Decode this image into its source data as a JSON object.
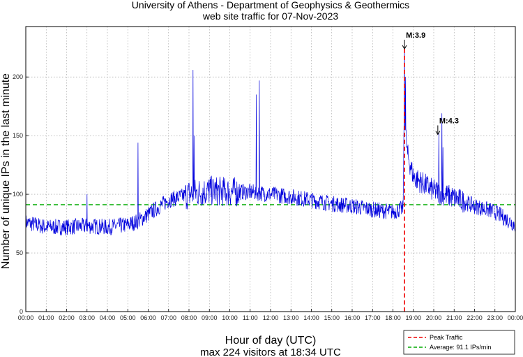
{
  "chart_data": {
    "type": "line",
    "title_line1": "University of Athens - Department of Geophysics & Geothermics",
    "title_line2": "web site traffic for 07-Nov-2023",
    "xlabel": "Hour of day (UTC)",
    "ylabel": "Number of unique IPs in the last minute",
    "summary": "max 224 visitors at 18:34 UTC",
    "xlim": [
      0,
      24
    ],
    "ylim": [
      0,
      243
    ],
    "x_ticks": [
      "00:00",
      "01:00",
      "02:00",
      "03:00",
      "04:00",
      "05:00",
      "06:00",
      "07:00",
      "08:00",
      "09:00",
      "10:00",
      "11:00",
      "12:00",
      "13:00",
      "14:00",
      "15:00",
      "16:00",
      "17:00",
      "18:00",
      "19:00",
      "20:00",
      "21:00",
      "22:00",
      "23:00",
      "00:00"
    ],
    "y_ticks": [
      0,
      50,
      100,
      150,
      200
    ],
    "grid": true,
    "series_color": "#0000dd",
    "series_baseline": {
      "hours": [
        0,
        1,
        2,
        3,
        4,
        5,
        5.5,
        6,
        7,
        8,
        9,
        10,
        11,
        12,
        13,
        14,
        15,
        16,
        17,
        18,
        18.5,
        18.55,
        18.7,
        19,
        20,
        21,
        22,
        23,
        24
      ],
      "values": [
        76,
        72,
        72,
        73,
        72,
        74,
        77,
        83,
        95,
        100,
        103,
        102,
        102,
        100,
        98,
        95,
        92,
        90,
        87,
        85,
        88,
        170,
        135,
        115,
        103,
        97,
        90,
        85,
        74
      ]
    },
    "spikes": [
      {
        "hour": 3.0,
        "value": 100
      },
      {
        "hour": 5.5,
        "value": 144
      },
      {
        "hour": 8.2,
        "value": 206
      },
      {
        "hour": 8.25,
        "value": 150
      },
      {
        "hour": 11.3,
        "value": 185
      },
      {
        "hour": 11.45,
        "value": 197
      },
      {
        "hour": 18.57,
        "value": 224
      },
      {
        "hour": 18.62,
        "value": 200
      },
      {
        "hour": 20.25,
        "value": 152
      },
      {
        "hour": 20.4,
        "value": 169
      },
      {
        "hour": 20.45,
        "value": 140
      }
    ],
    "peak": {
      "hour": 18.567,
      "value": 224,
      "label": "Peak Traffic",
      "color": "#ee0000"
    },
    "average": {
      "value": 91.1,
      "label": "Average: 91.1 IPs/min",
      "color": "#00aa00"
    },
    "annotations": [
      {
        "label": "M:3.9",
        "hour": 18.567,
        "value": 224
      },
      {
        "label": "M:4.3",
        "hour": 20.2,
        "value": 151
      }
    ],
    "legend_position": "bottom-right"
  }
}
